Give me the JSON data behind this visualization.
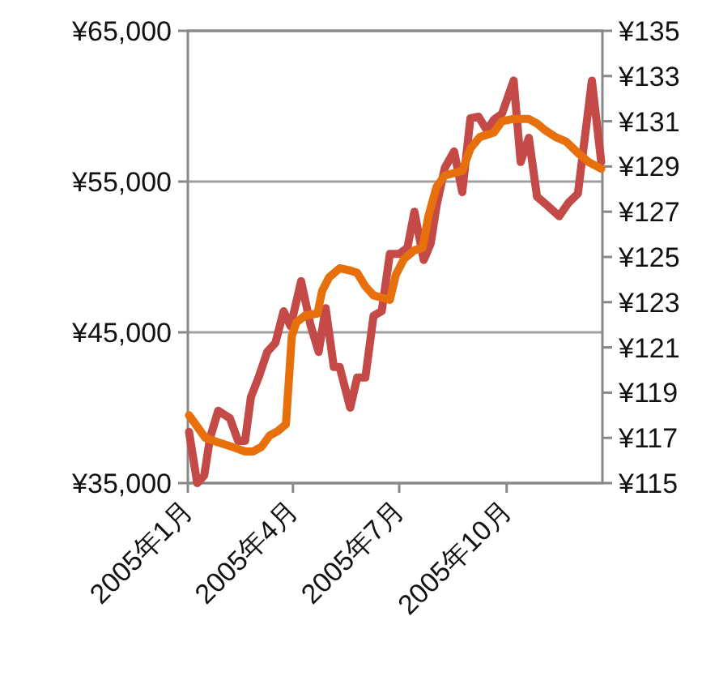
{
  "chart_data": {
    "type": "line",
    "grid": "y",
    "line_style": "solid",
    "marker": "none",
    "xlim": [
      "2005-01-01",
      "2005-12-22"
    ],
    "xticks": [
      {
        "value": "2005-01-01",
        "label": "2005年1月"
      },
      {
        "value": "2005-04-01",
        "label": "2005年4月"
      },
      {
        "value": "2005-07-01",
        "label": "2005年7月"
      },
      {
        "value": "2005-10-01",
        "label": "2005年10月"
      }
    ],
    "ylim": [
      35000,
      65000
    ],
    "yticks": [
      {
        "value": 35000,
        "label": "¥35,000"
      },
      {
        "value": 45000,
        "label": "¥45,000"
      },
      {
        "value": 55000,
        "label": "¥55,000"
      },
      {
        "value": 65000,
        "label": "¥65,000"
      }
    ],
    "y2lim": [
      115,
      135
    ],
    "y2ticks": [
      {
        "value": 115,
        "label": "¥115"
      },
      {
        "value": 117,
        "label": "¥117"
      },
      {
        "value": 119,
        "label": "¥119"
      },
      {
        "value": 121,
        "label": "¥121"
      },
      {
        "value": 123,
        "label": "¥123"
      },
      {
        "value": 125,
        "label": "¥125"
      },
      {
        "value": 127,
        "label": "¥127"
      },
      {
        "value": 129,
        "label": "¥129"
      },
      {
        "value": 131,
        "label": "¥131"
      },
      {
        "value": 133,
        "label": "¥133"
      },
      {
        "value": 135,
        "label": "¥135"
      }
    ],
    "series": [
      {
        "color": "#c44a48",
        "x": [
          "2005-01-02",
          "2005-01-09",
          "2005-01-15",
          "2005-01-20",
          "2005-01-27",
          "2005-02-06",
          "2005-02-13",
          "2005-02-19",
          "2005-02-24",
          "2005-03-03",
          "2005-03-10",
          "2005-03-17",
          "2005-03-24",
          "2005-03-30",
          "2005-04-08",
          "2005-04-16",
          "2005-04-23",
          "2005-04-29",
          "2005-05-06",
          "2005-05-11",
          "2005-05-20",
          "2005-05-26",
          "2005-06-02",
          "2005-06-09",
          "2005-06-16",
          "2005-06-23",
          "2005-07-01",
          "2005-07-08",
          "2005-07-14",
          "2005-07-22",
          "2005-07-28",
          "2005-08-02",
          "2005-08-09",
          "2005-08-17",
          "2005-08-24",
          "2005-08-31",
          "2005-09-07",
          "2005-09-14",
          "2005-09-20",
          "2005-09-27",
          "2005-10-07",
          "2005-10-13",
          "2005-10-20",
          "2005-10-27",
          "2005-11-05",
          "2005-11-15",
          "2005-11-23",
          "2005-12-01",
          "2005-12-13",
          "2005-12-21"
        ],
        "values": [
          38400,
          35000,
          35500,
          38000,
          39800,
          39300,
          37800,
          37800,
          40700,
          42100,
          43700,
          44300,
          46400,
          45400,
          48400,
          45500,
          43700,
          46600,
          42700,
          42700,
          40000,
          42000,
          42000,
          46100,
          46400,
          50200,
          50200,
          50600,
          53000,
          49800,
          50900,
          53400,
          55900,
          57000,
          54300,
          59200,
          59300,
          58400,
          59100,
          59500,
          61700,
          56300,
          57900,
          54000,
          53400,
          52700,
          53600,
          54200,
          61700,
          56300
        ]
      },
      {
        "color": "#e8700c",
        "axis": "y2",
        "x": [
          "2005-01-02",
          "2005-01-09",
          "2005-01-16",
          "2005-01-27",
          "2005-02-08",
          "2005-02-19",
          "2005-02-26",
          "2005-03-05",
          "2005-03-12",
          "2005-03-19",
          "2005-03-26",
          "2005-03-31",
          "2005-04-04",
          "2005-04-11",
          "2005-04-22",
          "2005-04-26",
          "2005-05-02",
          "2005-05-11",
          "2005-05-20",
          "2005-05-26",
          "2005-06-02",
          "2005-06-09",
          "2005-06-16",
          "2005-06-23",
          "2005-06-28",
          "2005-07-05",
          "2005-07-14",
          "2005-07-21",
          "2005-07-26",
          "2005-08-02",
          "2005-08-09",
          "2005-08-16",
          "2005-08-24",
          "2005-08-31",
          "2005-09-08",
          "2005-09-20",
          "2005-09-27",
          "2005-10-06",
          "2005-10-20",
          "2005-10-27",
          "2005-11-03",
          "2005-11-12",
          "2005-11-21",
          "2005-12-01",
          "2005-12-10",
          "2005-12-21"
        ],
        "values": [
          118.0,
          117.5,
          117.0,
          116.8,
          116.6,
          116.4,
          116.4,
          116.6,
          117.1,
          117.3,
          117.6,
          121.5,
          122.1,
          122.4,
          122.5,
          123.5,
          124.1,
          124.5,
          124.4,
          124.3,
          123.7,
          123.3,
          123.2,
          123.1,
          124.2,
          124.9,
          125.3,
          125.4,
          126.8,
          128.1,
          128.6,
          128.7,
          128.8,
          129.8,
          130.3,
          130.5,
          131.0,
          131.1,
          131.1,
          130.9,
          130.6,
          130.3,
          130.1,
          129.6,
          129.2,
          128.9
        ]
      }
    ]
  }
}
